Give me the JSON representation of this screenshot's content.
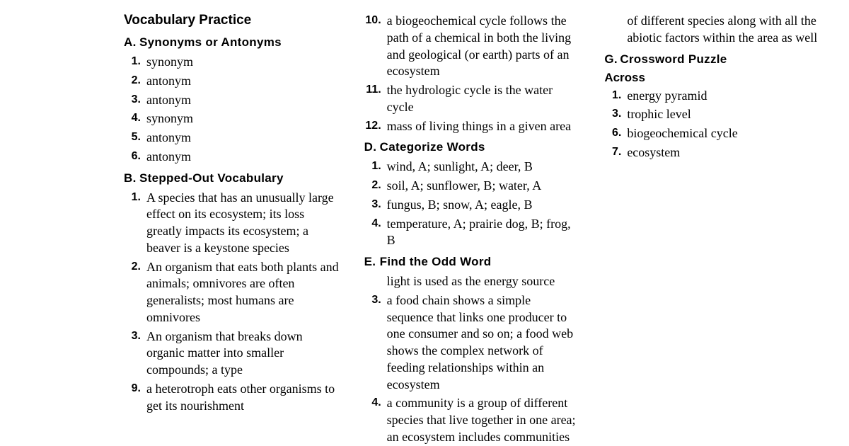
{
  "title": "Vocabulary Practice",
  "sections": {
    "A": {
      "heading": "Synonyms or Antonyms",
      "items": [
        {
          "n": "1.",
          "t": "synonym"
        },
        {
          "n": "2.",
          "t": "antonym"
        },
        {
          "n": "3.",
          "t": "antonym"
        },
        {
          "n": "4.",
          "t": "synonym"
        },
        {
          "n": "5.",
          "t": "antonym"
        },
        {
          "n": "6.",
          "t": "antonym"
        }
      ]
    },
    "B": {
      "heading": "Stepped-Out Vocabulary",
      "items": [
        {
          "n": "1.",
          "t": "A species that has an unusually large effect on its ecosystem; its loss greatly impacts its ecosystem; a beaver is a keystone species"
        },
        {
          "n": "2.",
          "t": "An organism that eats both plants and animals; omnivores are often generalists; most humans are omnivores"
        },
        {
          "n": "3.",
          "t": "An organism that breaks down organic matter into smaller compounds; a type"
        }
      ]
    },
    "col2_top": [
      {
        "n": "9.",
        "t": "a heterotroph eats other organisms to get its nourishment"
      },
      {
        "n": "10.",
        "t": "a biogeochemical cycle follows the path of a chemical in both the living and geological (or earth) parts of an ecosystem"
      },
      {
        "n": "11.",
        "t": "the hydrologic cycle is the water cycle"
      },
      {
        "n": "12.",
        "t": "mass of living things in a given area"
      }
    ],
    "D": {
      "heading": "Categorize Words",
      "items": [
        {
          "n": "1.",
          "t": "wind, A; sunlight, A; deer, B"
        },
        {
          "n": "2.",
          "t": "soil, A; sunflower, B; water, A"
        },
        {
          "n": "3.",
          "t": "fungus, B; snow, A; eagle, B"
        },
        {
          "n": "4.",
          "t": "temperature, A; prairie dog, B; frog, B"
        }
      ]
    },
    "E": {
      "heading": "Find the Odd Word"
    },
    "col3_top_cont": "light is used as the energy source",
    "col3_items": [
      {
        "n": "3.",
        "t": "a food chain shows a simple sequence that links one producer to one consumer and so on; a food web shows the complex network of feeding relationships within an ecosystem"
      },
      {
        "n": "4.",
        "t": "a community is a group of different species that live together in one area; an ecosystem includes communities of different species along with all the abiotic factors within the area as well"
      }
    ],
    "G": {
      "heading": "Crossword Puzzle",
      "sub": "Across",
      "items": [
        {
          "n": "1.",
          "t": "energy pyramid"
        },
        {
          "n": "3.",
          "t": "trophic level"
        },
        {
          "n": "6.",
          "t": "biogeochemical cycle"
        },
        {
          "n": "7.",
          "t": "ecosystem"
        }
      ]
    }
  },
  "letters": {
    "A": "A.",
    "B": "B.",
    "D": "D.",
    "E": "E.",
    "G": "G."
  }
}
